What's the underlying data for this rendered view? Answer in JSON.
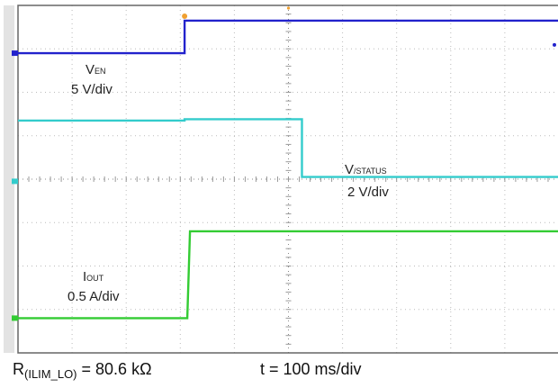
{
  "chart_data": {
    "type": "line",
    "grid": true,
    "divisions": {
      "x": 10,
      "y": 8
    },
    "x_unit_label": "t = 100 ms/div",
    "xlim_div": [
      0,
      10
    ],
    "trigger_marker_color": "#f0a030",
    "series": [
      {
        "name": "EN",
        "label_main": "V",
        "label_sub": "EN",
        "scale": "5 V/div",
        "color": "#2222cc",
        "x_div": [
          0,
          3.08,
          3.08,
          10
        ],
        "y_div": [
          6.9,
          6.9,
          7.65,
          7.65
        ],
        "baseline_div": 6.9
      },
      {
        "name": "/STATUS",
        "label_main": "V",
        "label_sub": "/STATUS",
        "scale": "2 V/div",
        "color": "#33cccc",
        "x_div": [
          0,
          3.08,
          3.08,
          5.25,
          5.25,
          10
        ],
        "y_div": [
          5.35,
          5.35,
          5.38,
          5.38,
          4.05,
          4.05
        ],
        "baseline_div": 3.95
      },
      {
        "name": "OUT",
        "label_main": "I",
        "label_sub": "OUT",
        "scale": "0.5 A/div",
        "color": "#33cc33",
        "x_div": [
          0,
          3.13,
          3.18,
          10
        ],
        "y_div": [
          0.8,
          0.8,
          2.8,
          2.8
        ],
        "baseline_div": 0.8
      }
    ]
  },
  "caption": {
    "r_prefix": "R",
    "r_sub": "(ILIM_LO)",
    "r_value": " = 80.6 kΩ",
    "time_scale": "t = 100 ms/div"
  }
}
